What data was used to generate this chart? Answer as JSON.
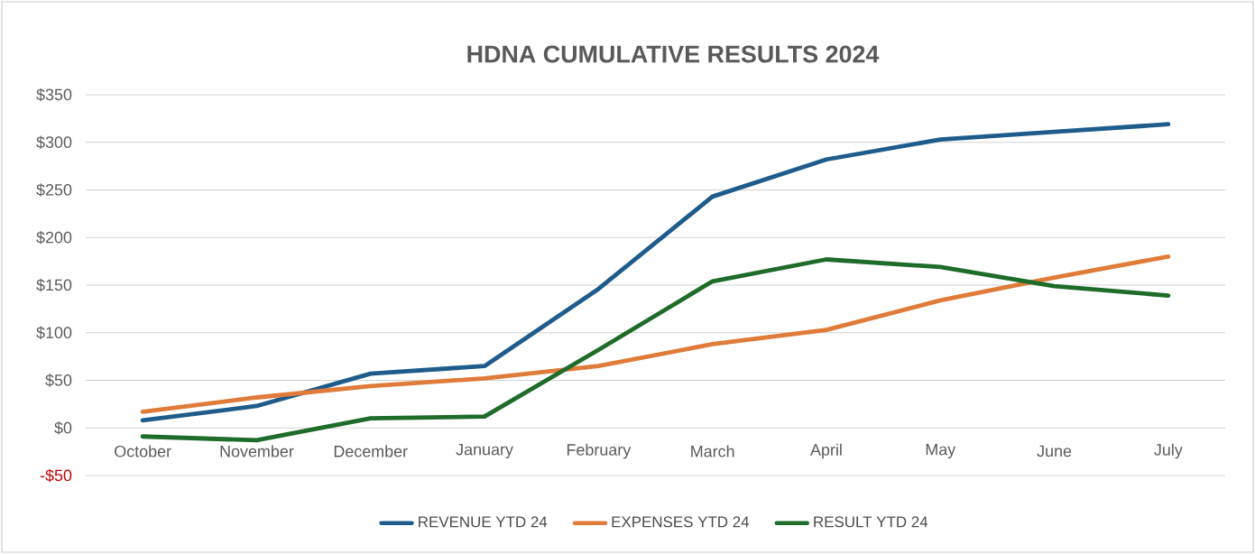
{
  "chart_data": {
    "type": "line",
    "title": "HDNA CUMULATIVE RESULTS 2024",
    "categories": [
      "October",
      "November",
      "December",
      "January",
      "February",
      "March",
      "April",
      "May",
      "June",
      "July"
    ],
    "series": [
      {
        "name": "REVENUE YTD 24",
        "color": "#1f5c8b",
        "values": [
          8,
          23,
          57,
          65,
          146,
          243,
          282,
          303,
          311,
          319
        ]
      },
      {
        "name": "EXPENSES YTD 24",
        "color": "#e07b39",
        "values": [
          17,
          32,
          44,
          52,
          65,
          88,
          103,
          134,
          158,
          180
        ]
      },
      {
        "name": "RESULT YTD 24",
        "color": "#1e6b2a",
        "values": [
          -9,
          -13,
          10,
          12,
          82,
          154,
          177,
          169,
          149,
          139
        ]
      }
    ],
    "ylim": [
      -50,
      350
    ],
    "yticks": [
      {
        "value": -50,
        "label": "-$50"
      },
      {
        "value": 0,
        "label": "$0"
      },
      {
        "value": 50,
        "label": "$50"
      },
      {
        "value": 100,
        "label": "$100"
      },
      {
        "value": 150,
        "label": "$150"
      },
      {
        "value": 200,
        "label": "$200"
      },
      {
        "value": 250,
        "label": "$250"
      },
      {
        "value": 300,
        "label": "$300"
      },
      {
        "value": 350,
        "label": "$350"
      }
    ],
    "grid": "y",
    "legend": "bottom",
    "marker": "none",
    "line_style": "solid"
  }
}
